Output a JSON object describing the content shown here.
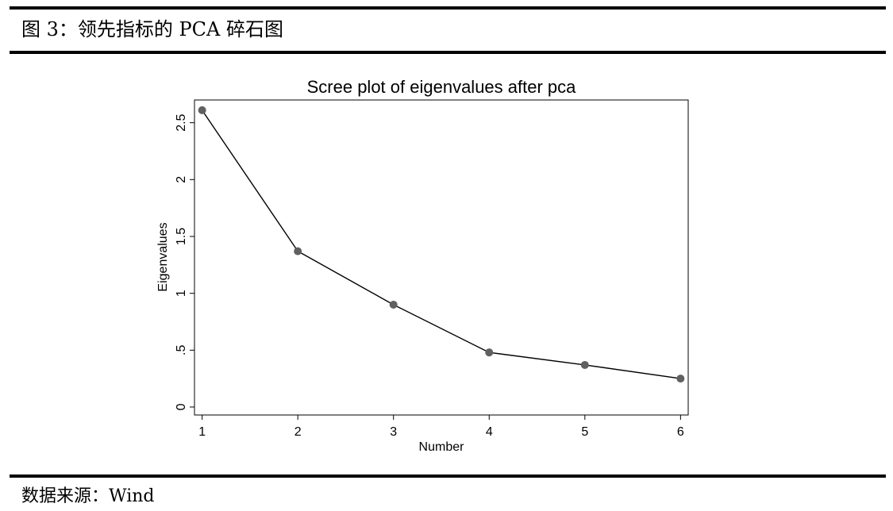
{
  "figure": {
    "caption": "图 3：领先指标的 PCA 碎石图",
    "source": "数据来源：Wind"
  },
  "chart_data": {
    "type": "line",
    "title": "Scree plot of eigenvalues after pca",
    "xlabel": "Number",
    "ylabel": "Eigenvalues",
    "x": [
      1,
      2,
      3,
      4,
      5,
      6
    ],
    "values": [
      2.61,
      1.37,
      0.9,
      0.48,
      0.37,
      0.25
    ],
    "xlim": [
      0.92,
      6.08
    ],
    "ylim": [
      -0.07,
      2.7
    ],
    "xticks": [
      {
        "value": 1,
        "label": "1"
      },
      {
        "value": 2,
        "label": "2"
      },
      {
        "value": 3,
        "label": "3"
      },
      {
        "value": 4,
        "label": "4"
      },
      {
        "value": 5,
        "label": "5"
      },
      {
        "value": 6,
        "label": "6"
      }
    ],
    "yticks": [
      {
        "value": 0,
        "label": "0"
      },
      {
        "value": 0.5,
        "label": ".5"
      },
      {
        "value": 1,
        "label": "1"
      },
      {
        "value": 1.5,
        "label": "1.5"
      },
      {
        "value": 2,
        "label": "2"
      },
      {
        "value": 2.5,
        "label": "2.5"
      }
    ],
    "grid": false,
    "line_color": "#000000",
    "marker_color": "#606060"
  }
}
